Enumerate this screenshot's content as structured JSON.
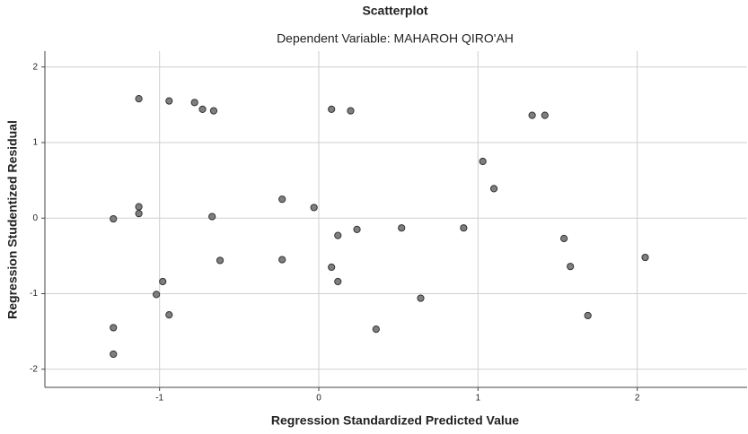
{
  "chart_data": {
    "type": "scatter",
    "title": "Scatterplot",
    "subtitle": "Dependent Variable: MAHAROH QIRO'AH",
    "x_label": "Regression Standardized Predicted Value",
    "y_label": "Regression Studentized Residual",
    "color": "#7f7f7f",
    "grid": true,
    "xlim": [
      -1.72,
      2.69
    ],
    "ylim": [
      -2.24,
      2.21
    ],
    "xticks": [
      -1,
      0,
      1,
      2
    ],
    "yticks": [
      -2,
      -1,
      0,
      1,
      2
    ],
    "x": [
      -1.13,
      -0.94,
      -0.78,
      -0.73,
      -0.66,
      0.08,
      0.2,
      1.34,
      1.42,
      1.03,
      1.1,
      -1.29,
      -1.13,
      -1.13,
      -0.67,
      -0.23,
      -0.03,
      0.12,
      0.24,
      0.52,
      0.91,
      1.54,
      1.58,
      2.05,
      -0.62,
      -0.23,
      0.08,
      0.12,
      -0.98,
      -1.02,
      -0.94,
      0.64,
      0.36,
      1.69,
      -1.29,
      -1.29
    ],
    "values": [
      1.58,
      1.55,
      1.53,
      1.44,
      1.42,
      1.44,
      1.42,
      1.36,
      1.36,
      0.75,
      0.39,
      -0.01,
      0.15,
      0.06,
      0.02,
      0.25,
      0.14,
      -0.23,
      -0.15,
      -0.13,
      -0.13,
      -0.27,
      -0.64,
      -0.52,
      -0.56,
      -0.55,
      -0.65,
      -0.84,
      -0.84,
      -1.01,
      -1.28,
      -1.06,
      -1.47,
      -1.29,
      -1.45,
      -1.8
    ]
  }
}
